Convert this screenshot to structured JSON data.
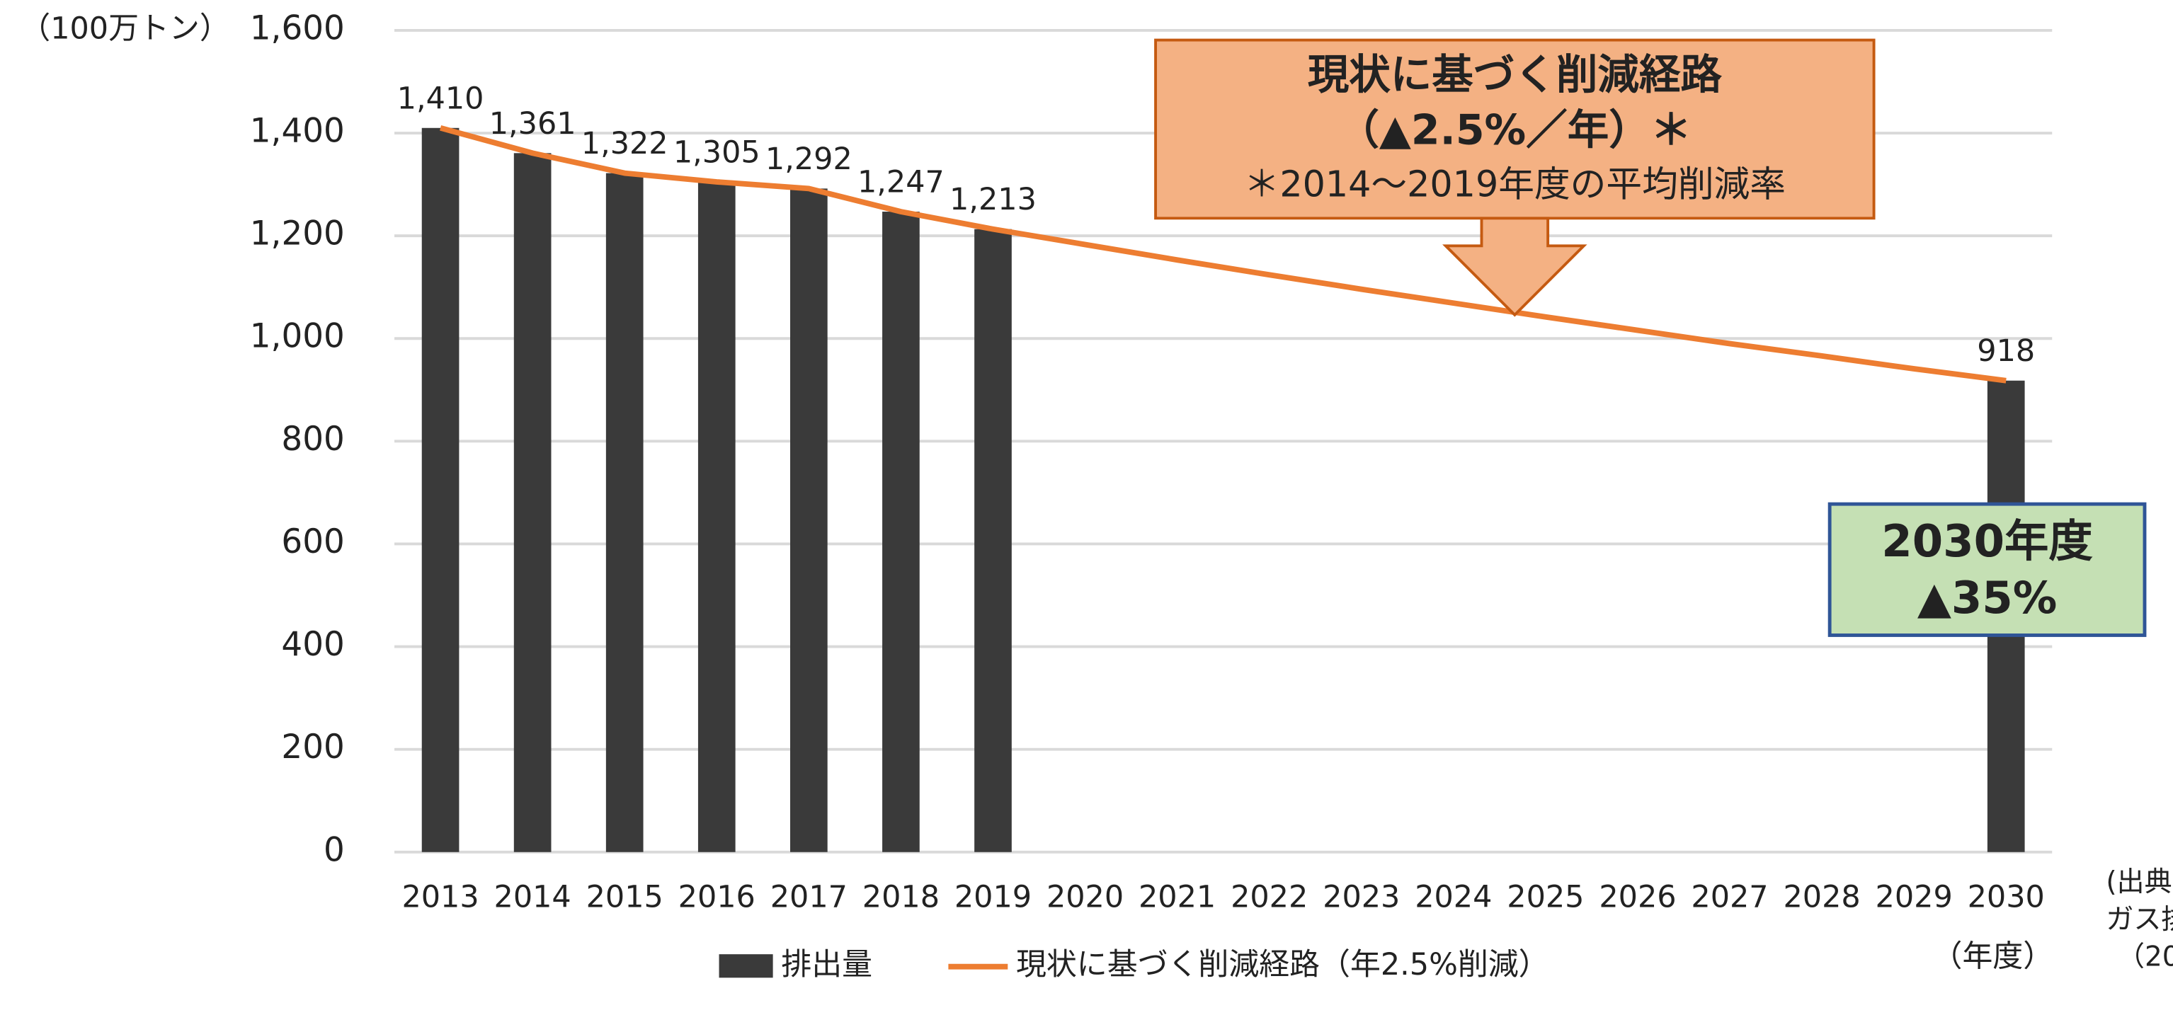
{
  "chart_data": {
    "type": "bar",
    "y_label": "（100万トン）",
    "x_label": "（年度）",
    "categories": [
      "2013",
      "2014",
      "2015",
      "2016",
      "2017",
      "2018",
      "2019",
      "2020",
      "2021",
      "2022",
      "2023",
      "2024",
      "2025",
      "2026",
      "2027",
      "2028",
      "2029",
      "2030"
    ],
    "series": [
      {
        "name": "排出量",
        "type": "bar",
        "color": "#3a3a3a",
        "values": [
          1410,
          1361,
          1322,
          1305,
          1292,
          1247,
          1213,
          null,
          null,
          null,
          null,
          null,
          null,
          null,
          null,
          null,
          null,
          918
        ],
        "value_labels": [
          "1,410",
          "1,361",
          "1,322",
          "1,305",
          "1,292",
          "1,247",
          "1,213",
          null,
          null,
          null,
          null,
          null,
          null,
          null,
          null,
          null,
          null,
          "918"
        ]
      },
      {
        "name": "現状に基づく削減経路（年2.5%削減）",
        "type": "line",
        "color": "#ed7d31",
        "values": [
          1410,
          1361,
          1322,
          1305,
          1292,
          1247,
          1213,
          1183,
          1153,
          1124,
          1096,
          1069,
          1042,
          1016,
          990,
          966,
          941,
          918
        ]
      }
    ],
    "ylim": [
      0,
      1600
    ],
    "yticks": [
      0,
      200,
      400,
      600,
      800,
      {
        "value": 1000,
        "label": "1,000"
      },
      {
        "value": 1200,
        "label": "1,200"
      },
      {
        "value": 1400,
        "label": "1,400"
      },
      {
        "value": 1600,
        "label": "1,600"
      }
    ],
    "grid": true,
    "legend": "bottom",
    "annotation_box": [
      "現状に基づく削減経路",
      "（▲2.5%／年）＊",
      "＊2014～2019年度の平均削減率"
    ],
    "target_box": [
      "2030年度",
      "▲35%"
    ],
    "source_note": [
      "(出典",
      "ガス排",
      "（20"
    ]
  }
}
